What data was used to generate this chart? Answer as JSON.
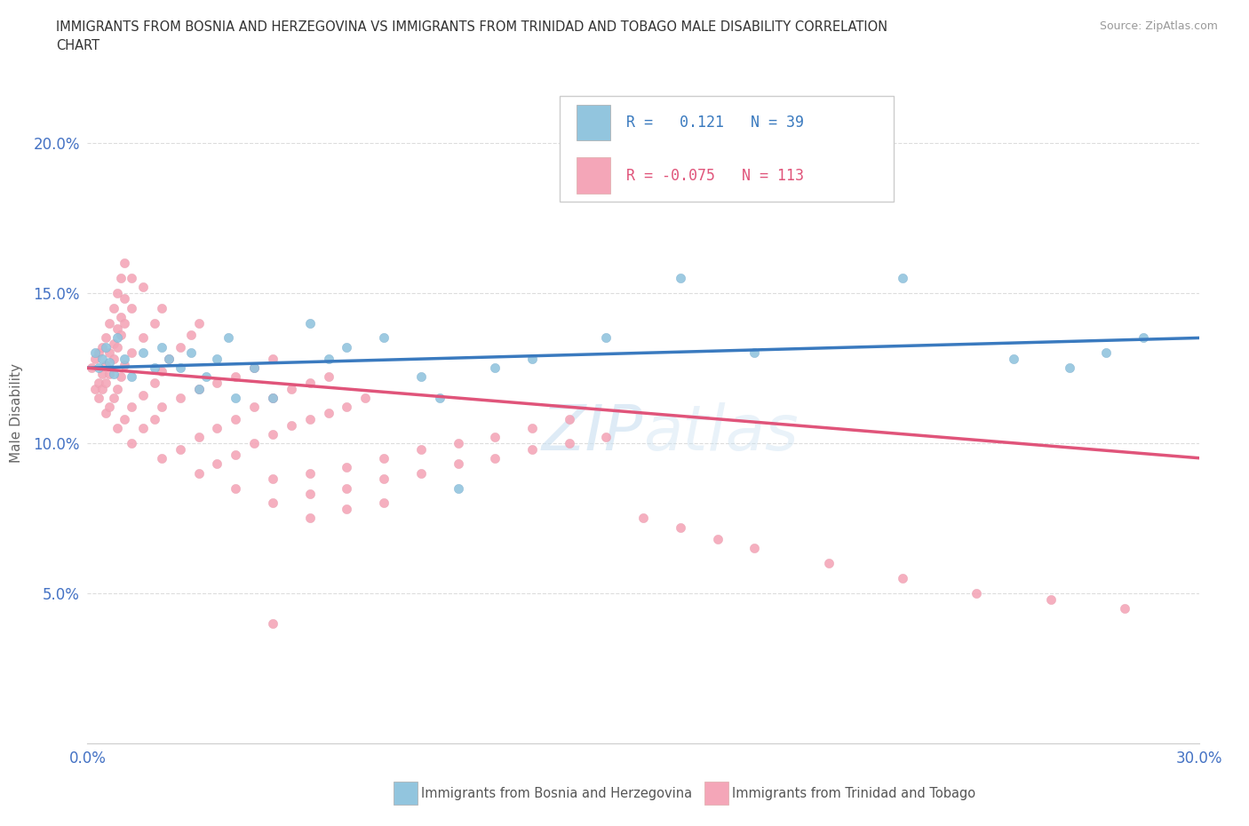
{
  "title_line1": "IMMIGRANTS FROM BOSNIA AND HERZEGOVINA VS IMMIGRANTS FROM TRINIDAD AND TOBAGO MALE DISABILITY CORRELATION",
  "title_line2": "CHART",
  "source_text": "Source: ZipAtlas.com",
  "ylabel": "Male Disability",
  "xlim": [
    0.0,
    0.3
  ],
  "ylim": [
    0.0,
    0.22
  ],
  "xticks": [
    0.0,
    0.05,
    0.1,
    0.15,
    0.2,
    0.25,
    0.3
  ],
  "yticks": [
    0.0,
    0.05,
    0.1,
    0.15,
    0.2
  ],
  "blue_scatter_color": "#92c5de",
  "pink_scatter_color": "#f4a6b8",
  "blue_line_color": "#3a7abf",
  "pink_line_color": "#e0547a",
  "watermark_color": "#c8dff0",
  "legend_text_color": "#3a7abf",
  "legend_r1": "R =   0.121",
  "legend_n1": "N = 39",
  "legend_r2": "R = -0.075",
  "legend_n2": "N = 113",
  "bottom_legend_label1": "Immigrants from Bosnia and Herzegovina",
  "bottom_legend_label2": "Immigrants from Trinidad and Tobago",
  "bosnia_x": [
    0.002,
    0.003,
    0.004,
    0.005,
    0.006,
    0.007,
    0.008,
    0.01,
    0.012,
    0.015,
    0.018,
    0.02,
    0.022,
    0.025,
    0.028,
    0.03,
    0.032,
    0.035,
    0.038,
    0.04,
    0.045,
    0.05,
    0.06,
    0.065,
    0.07,
    0.08,
    0.09,
    0.095,
    0.1,
    0.11,
    0.12,
    0.14,
    0.16,
    0.18,
    0.22,
    0.25,
    0.265,
    0.275,
    0.285
  ],
  "bosnia_y": [
    0.13,
    0.125,
    0.128,
    0.132,
    0.127,
    0.123,
    0.135,
    0.128,
    0.122,
    0.13,
    0.125,
    0.132,
    0.128,
    0.125,
    0.13,
    0.118,
    0.122,
    0.128,
    0.135,
    0.115,
    0.125,
    0.115,
    0.14,
    0.128,
    0.132,
    0.135,
    0.122,
    0.115,
    0.085,
    0.125,
    0.128,
    0.135,
    0.155,
    0.13,
    0.155,
    0.128,
    0.125,
    0.13,
    0.135
  ],
  "trinidad_x": [
    0.001,
    0.002,
    0.003,
    0.004,
    0.005,
    0.006,
    0.007,
    0.008,
    0.009,
    0.01,
    0.002,
    0.003,
    0.004,
    0.005,
    0.006,
    0.007,
    0.008,
    0.009,
    0.01,
    0.012,
    0.003,
    0.004,
    0.005,
    0.006,
    0.007,
    0.008,
    0.009,
    0.01,
    0.012,
    0.015,
    0.005,
    0.006,
    0.007,
    0.008,
    0.009,
    0.01,
    0.012,
    0.015,
    0.018,
    0.02,
    0.008,
    0.01,
    0.012,
    0.015,
    0.018,
    0.02,
    0.022,
    0.025,
    0.028,
    0.03,
    0.012,
    0.015,
    0.018,
    0.02,
    0.025,
    0.03,
    0.035,
    0.04,
    0.045,
    0.05,
    0.02,
    0.025,
    0.03,
    0.035,
    0.04,
    0.045,
    0.05,
    0.055,
    0.06,
    0.065,
    0.03,
    0.035,
    0.04,
    0.045,
    0.05,
    0.055,
    0.06,
    0.065,
    0.07,
    0.075,
    0.04,
    0.05,
    0.06,
    0.07,
    0.08,
    0.09,
    0.1,
    0.11,
    0.12,
    0.13,
    0.05,
    0.06,
    0.07,
    0.08,
    0.09,
    0.1,
    0.11,
    0.12,
    0.13,
    0.14,
    0.06,
    0.07,
    0.08,
    0.15,
    0.16,
    0.17,
    0.18,
    0.2,
    0.22,
    0.24,
    0.26,
    0.28,
    0.05
  ],
  "trinidad_y": [
    0.125,
    0.128,
    0.13,
    0.132,
    0.135,
    0.14,
    0.145,
    0.15,
    0.155,
    0.16,
    0.118,
    0.12,
    0.123,
    0.126,
    0.13,
    0.133,
    0.138,
    0.142,
    0.148,
    0.155,
    0.115,
    0.118,
    0.12,
    0.123,
    0.128,
    0.132,
    0.136,
    0.14,
    0.145,
    0.152,
    0.11,
    0.112,
    0.115,
    0.118,
    0.122,
    0.126,
    0.13,
    0.135,
    0.14,
    0.145,
    0.105,
    0.108,
    0.112,
    0.116,
    0.12,
    0.124,
    0.128,
    0.132,
    0.136,
    0.14,
    0.1,
    0.105,
    0.108,
    0.112,
    0.115,
    0.118,
    0.12,
    0.122,
    0.125,
    0.128,
    0.095,
    0.098,
    0.102,
    0.105,
    0.108,
    0.112,
    0.115,
    0.118,
    0.12,
    0.122,
    0.09,
    0.093,
    0.096,
    0.1,
    0.103,
    0.106,
    0.108,
    0.11,
    0.112,
    0.115,
    0.085,
    0.088,
    0.09,
    0.092,
    0.095,
    0.098,
    0.1,
    0.102,
    0.105,
    0.108,
    0.08,
    0.083,
    0.085,
    0.088,
    0.09,
    0.093,
    0.095,
    0.098,
    0.1,
    0.102,
    0.075,
    0.078,
    0.08,
    0.075,
    0.072,
    0.068,
    0.065,
    0.06,
    0.055,
    0.05,
    0.048,
    0.045,
    0.04
  ]
}
